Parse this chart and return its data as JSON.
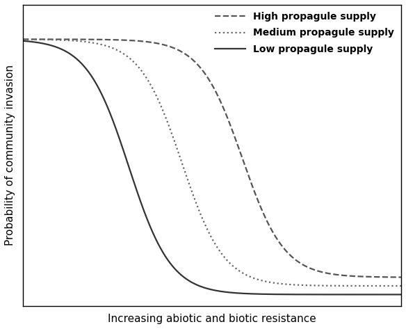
{
  "title": "",
  "xlabel": "Increasing abiotic and biotic resistance",
  "ylabel": "Probability of community invasion",
  "background_color": "#ffffff",
  "xlabel_fontsize": 11,
  "ylabel_fontsize": 11,
  "curves": [
    {
      "label": "High propagule supply",
      "linestyle": "--",
      "color": "#555555",
      "midpoint": 0.58,
      "steepness": 18,
      "ymin": 0.1,
      "ymax": 0.93
    },
    {
      "label": "Medium propagule supply",
      "linestyle": ":",
      "color": "#666666",
      "midpoint": 0.42,
      "steepness": 18,
      "ymin": 0.07,
      "ymax": 0.93
    },
    {
      "label": "Low propagule supply",
      "linestyle": "-",
      "color": "#333333",
      "midpoint": 0.28,
      "steepness": 18,
      "ymin": 0.04,
      "ymax": 0.93
    }
  ],
  "xlim": [
    0,
    1
  ],
  "ylim": [
    0,
    1.05
  ],
  "linewidths": [
    1.6,
    1.6,
    1.6
  ],
  "legend_fontsize": 10,
  "legend_loc": "upper right",
  "legend_bold": true
}
